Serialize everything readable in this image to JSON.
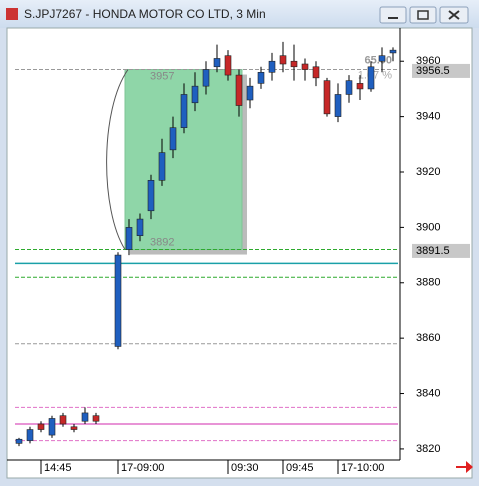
{
  "window_title": "S.JPJ7267 - HONDA MOTOR CO LTD, 3 Min",
  "chart_data": {
    "type": "candlestick",
    "categories": [
      null,
      null,
      "14:45",
      null,
      null,
      null,
      null,
      null,
      null,
      "17-09:00",
      null,
      null,
      null,
      null,
      null,
      null,
      null,
      null,
      null,
      "09:30",
      null,
      null,
      null,
      null,
      "09:45",
      null,
      null,
      null,
      null,
      "17-10:00",
      null,
      null,
      null,
      null,
      null
    ],
    "open": [
      3822,
      3823,
      3829,
      3825,
      3832,
      3828,
      3830,
      3832,
      null,
      3857,
      3892,
      3897,
      3906,
      3917,
      3928,
      3936,
      3945,
      3951,
      3958,
      3962,
      3955,
      3946,
      3952,
      3956,
      3962,
      3960,
      3959,
      3958,
      3953,
      3940,
      3948,
      3952,
      3950,
      3960,
      3963
    ],
    "high": [
      3824,
      3828,
      3830,
      3832,
      3833,
      3829,
      3835,
      3833,
      null,
      3891,
      3903,
      3905,
      3919,
      3932,
      3940,
      3952,
      3956,
      3960,
      3966,
      3964,
      3957,
      3954,
      3958,
      3963,
      3967,
      3966,
      3961,
      3960,
      3954,
      3952,
      3955,
      3955,
      3960,
      3965,
      3965
    ],
    "low": [
      3821,
      3822,
      3826,
      3824,
      3828,
      3826,
      3829,
      3829,
      null,
      3856,
      3890,
      3895,
      3903,
      3915,
      3925,
      3934,
      3942,
      3948,
      3956,
      3953,
      3940,
      3943,
      3950,
      3953,
      3956,
      3953,
      3953,
      3951,
      3940,
      3938,
      3945,
      3946,
      3949,
      3956,
      3960
    ],
    "close": [
      3823.5,
      3827,
      3827,
      3831,
      3829,
      3827,
      3833,
      3830,
      null,
      3890,
      3900,
      3903,
      3917,
      3927,
      3936,
      3948,
      3951,
      3957,
      3961,
      3955,
      3944,
      3951,
      3956,
      3960,
      3959,
      3958,
      3957,
      3954,
      3941,
      3948,
      3953,
      3950,
      3958,
      3962,
      3964
    ],
    "up_color": "#1f5fbf",
    "down_color": "#c62828",
    "ylim": [
      3816,
      3972
    ],
    "yticks": [
      3820,
      3840,
      3860,
      3880,
      3900,
      3920,
      3940,
      3960
    ],
    "levels": [
      {
        "value": 3957,
        "color": "#999999",
        "style": "dashed"
      },
      {
        "value": 3858,
        "color": "#999999",
        "style": "dashed"
      },
      {
        "value": 3892,
        "color": "#2eaa2e",
        "style": "dashed"
      },
      {
        "value": 3882,
        "color": "#2eaa2e",
        "style": "dashed"
      },
      {
        "value": 3887,
        "color": "#1aa0a8",
        "style": "solid"
      },
      {
        "value": 3835,
        "color": "#e070c8",
        "style": "dashed"
      },
      {
        "value": 3829,
        "color": "#e070c8",
        "style": "solid"
      },
      {
        "value": 3823,
        "color": "#e070c8",
        "style": "dashed"
      }
    ],
    "price_labels": [
      3956.5,
      3891.5
    ],
    "box": {
      "top": 3957,
      "bottom": 3892,
      "color": "#8fd6a8",
      "measure": [
        "65.00",
        "1.67 %"
      ]
    }
  }
}
